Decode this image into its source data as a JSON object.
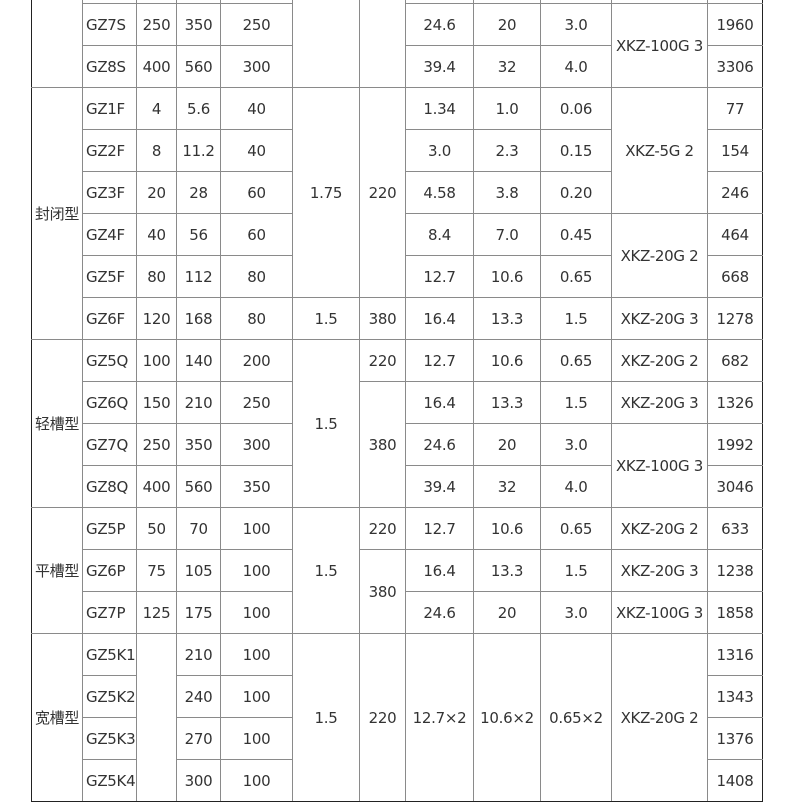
{
  "table": {
    "columns": [
      "group",
      "model",
      "a",
      "b",
      "c",
      "d",
      "e",
      "f",
      "g",
      "h",
      "i",
      "j"
    ],
    "rows": [
      {},
      {
        "model": "GZ7S",
        "a": "250",
        "b": "350",
        "c": "250",
        "f": "24.6",
        "g": "20",
        "h": "3.0",
        "i": "XKZ-100G 3",
        "j": "1960"
      },
      {
        "model": "GZ8S",
        "a": "400",
        "b": "560",
        "c": "300",
        "f": "39.4",
        "g": "32",
        "h": "4.0",
        "j": "3306"
      },
      {
        "group": "封闭型",
        "model": "GZ1F",
        "a": "4",
        "b": "5.6",
        "c": "40",
        "d": "1.75",
        "e": "220",
        "f": "1.34",
        "g": "1.0",
        "h": "0.06",
        "i": "XKZ-5G 2",
        "j": "77"
      },
      {
        "model": "GZ2F",
        "a": "8",
        "b": "11.2",
        "c": "40",
        "f": "3.0",
        "g": "2.3",
        "h": "0.15",
        "j": "154"
      },
      {
        "model": "GZ3F",
        "a": "20",
        "b": "28",
        "c": "60",
        "f": "4.58",
        "g": "3.8",
        "h": "0.20",
        "j": "246"
      },
      {
        "model": "GZ4F",
        "a": "40",
        "b": "56",
        "c": "60",
        "f": "8.4",
        "g": "7.0",
        "h": "0.45",
        "i": "XKZ-20G 2",
        "j": "464"
      },
      {
        "model": "GZ5F",
        "a": "80",
        "b": "112",
        "c": "80",
        "f": "12.7",
        "g": "10.6",
        "h": "0.65",
        "j": "668"
      },
      {
        "model": "GZ6F",
        "a": "120",
        "b": "168",
        "c": "80",
        "d": "1.5",
        "e": "380",
        "f": "16.4",
        "g": "13.3",
        "h": "1.5",
        "i": "XKZ-20G 3",
        "j": "1278"
      },
      {
        "group": "轻槽型",
        "model": "GZ5Q",
        "a": "100",
        "b": "140",
        "c": "200",
        "d": "1.5",
        "e": "220",
        "f": "12.7",
        "g": "10.6",
        "h": "0.65",
        "i": "XKZ-20G 2",
        "j": "682"
      },
      {
        "model": "GZ6Q",
        "a": "150",
        "b": "210",
        "c": "250",
        "e": "380",
        "f": "16.4",
        "g": "13.3",
        "h": "1.5",
        "i": "XKZ-20G 3",
        "j": "1326"
      },
      {
        "model": "GZ7Q",
        "a": "250",
        "b": "350",
        "c": "300",
        "f": "24.6",
        "g": "20",
        "h": "3.0",
        "i": "XKZ-100G 3",
        "j": "1992"
      },
      {
        "model": "GZ8Q",
        "a": "400",
        "b": "560",
        "c": "350",
        "f": "39.4",
        "g": "32",
        "h": "4.0",
        "j": "3046"
      },
      {
        "group": "平槽型",
        "model": "GZ5P",
        "a": "50",
        "b": "70",
        "c": "100",
        "d": "1.5",
        "e": "220",
        "f": "12.7",
        "g": "10.6",
        "h": "0.65",
        "i": "XKZ-20G 2",
        "j": "633"
      },
      {
        "model": "GZ6P",
        "a": "75",
        "b": "105",
        "c": "100",
        "e": "380",
        "f": "16.4",
        "g": "13.3",
        "h": "1.5",
        "i": "XKZ-20G 3",
        "j": "1238"
      },
      {
        "model": "GZ7P",
        "a": "125",
        "b": "175",
        "c": "100",
        "f": "24.6",
        "g": "20",
        "h": "3.0",
        "i": "XKZ-100G 3",
        "j": "1858"
      },
      {
        "group": "宽槽型",
        "model": "GZ5K1",
        "a": "",
        "b": "210",
        "c": "100",
        "d": "1.5",
        "e": "220",
        "f": "12.7×2",
        "g": "10.6×2",
        "h": "0.65×2",
        "i": "XKZ-20G 2",
        "j": "1316"
      },
      {
        "model": "GZ5K2",
        "b": "240",
        "c": "100",
        "j": "1343"
      },
      {
        "model": "GZ5K3",
        "b": "270",
        "c": "100",
        "j": "1376"
      },
      {
        "model": "GZ5K4",
        "b": "300",
        "c": "100",
        "j": "1408"
      }
    ]
  }
}
